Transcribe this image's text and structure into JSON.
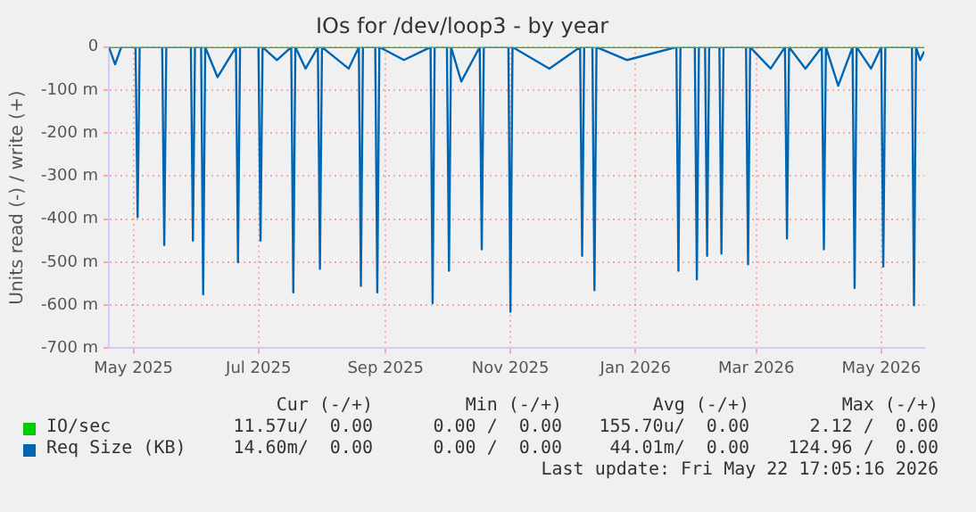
{
  "chart_data": {
    "type": "line",
    "title": "IOs for /dev/loop3 - by year",
    "ylabel": "Units read (-) / write (+)",
    "xlim": [
      "2025-04-19",
      "2026-05-22"
    ],
    "xticks": [
      {
        "value": "2025-05-01",
        "label": "May 2025"
      },
      {
        "value": "2025-07-01",
        "label": "Jul 2025"
      },
      {
        "value": "2025-09-01",
        "label": "Sep 2025"
      },
      {
        "value": "2025-11-01",
        "label": "Nov 2025"
      },
      {
        "value": "2026-01-01",
        "label": "Jan 2026"
      },
      {
        "value": "2026-03-01",
        "label": "Mar 2026"
      },
      {
        "value": "2026-05-01",
        "label": "May 2026"
      }
    ],
    "ylim": [
      -700,
      0
    ],
    "yticks": [
      {
        "value": -700,
        "label": "-700 m"
      },
      {
        "value": -600,
        "label": "-600 m"
      },
      {
        "value": -500,
        "label": "-500 m"
      },
      {
        "value": -400,
        "label": "-400 m"
      },
      {
        "value": -300,
        "label": "-300 m"
      },
      {
        "value": -200,
        "label": "-200 m"
      },
      {
        "value": -100,
        "label": "-100 m"
      },
      0
    ],
    "grid": true,
    "legend": "bottom",
    "marker": "none",
    "line_style": "solid",
    "series": [
      {
        "name": "IO/sec",
        "color": "#00cc00",
        "x": [
          "2025-04-19",
          "2026-05-22"
        ],
        "values": [
          0,
          0
        ]
      },
      {
        "name": "Req Size (KB)",
        "color": "#0066b3",
        "x": [
          "2025-04-19",
          "2025-04-22",
          "2025-04-25",
          "2025-05-02",
          "2025-05-03",
          "2025-05-04",
          "2025-05-15",
          "2025-05-16",
          "2025-05-17",
          "2025-05-29",
          "2025-05-30",
          "2025-05-31",
          "2025-06-03",
          "2025-06-04",
          "2025-06-05",
          "2025-06-11",
          "2025-06-20",
          "2025-06-21",
          "2025-06-22",
          "2025-07-01",
          "2025-07-02",
          "2025-07-03",
          "2025-07-10",
          "2025-07-17",
          "2025-07-18",
          "2025-07-19",
          "2025-07-24",
          "2025-07-30",
          "2025-07-31",
          "2025-08-01",
          "2025-08-14",
          "2025-08-19",
          "2025-08-20",
          "2025-08-21",
          "2025-08-27",
          "2025-08-28",
          "2025-08-29",
          "2025-09-10",
          "2025-09-23",
          "2025-09-24",
          "2025-09-25",
          "2025-10-01",
          "2025-10-02",
          "2025-10-03",
          "2025-10-08",
          "2025-10-17",
          "2025-10-18",
          "2025-10-19",
          "2025-10-31",
          "2025-11-01",
          "2025-11-02",
          "2025-11-20",
          "2025-12-05",
          "2025-12-06",
          "2025-12-07",
          "2025-12-11",
          "2025-12-12",
          "2025-12-13",
          "2025-12-28",
          "2026-01-21",
          "2026-01-22",
          "2026-01-23",
          "2026-01-30",
          "2026-01-31",
          "2026-02-01",
          "2026-02-04",
          "2026-02-05",
          "2026-02-06",
          "2026-02-11",
          "2026-02-12",
          "2026-02-13",
          "2026-02-24",
          "2026-02-25",
          "2026-02-26",
          "2026-03-08",
          "2026-03-15",
          "2026-03-16",
          "2026-03-17",
          "2026-03-25",
          "2026-04-02",
          "2026-04-03",
          "2026-04-04",
          "2026-04-10",
          "2026-04-17",
          "2026-04-18",
          "2026-04-19",
          "2026-04-26",
          "2026-05-01",
          "2026-05-02",
          "2026-05-03",
          "2026-05-16",
          "2026-05-17",
          "2026-05-18",
          "2026-05-20",
          "2026-05-22"
        ],
        "values": [
          0,
          -40,
          0,
          0,
          -395,
          0,
          0,
          -460,
          0,
          0,
          -450,
          0,
          0,
          -575,
          0,
          -70,
          0,
          -500,
          0,
          0,
          -450,
          0,
          -30,
          0,
          -570,
          0,
          -50,
          0,
          -515,
          0,
          -50,
          0,
          -555,
          0,
          0,
          -570,
          0,
          -30,
          0,
          -595,
          0,
          0,
          -520,
          0,
          -80,
          0,
          -470,
          0,
          0,
          -615,
          0,
          -50,
          0,
          -485,
          0,
          0,
          -565,
          0,
          -30,
          0,
          -520,
          0,
          0,
          -540,
          0,
          0,
          -485,
          0,
          0,
          -480,
          0,
          0,
          -505,
          0,
          -50,
          0,
          -445,
          0,
          -50,
          0,
          -470,
          0,
          -90,
          0,
          -560,
          0,
          -50,
          0,
          -510,
          0,
          0,
          -600,
          0,
          -30,
          -10
        ]
      }
    ],
    "annotations": [
      "Cur (-/+)",
      "Min (-/+)",
      "Avg (-/+)",
      "Max (-/+)",
      "11.57u/  0.00",
      "0.00 /  0.00",
      "155.70u/  0.00",
      "2.12 /  0.00",
      "14.60m/  0.00",
      "0.00 /  0.00",
      "44.01m/  0.00",
      "124.96 /  0.00",
      "Last update: Fri May 22 17:05:16 2026"
    ]
  }
}
